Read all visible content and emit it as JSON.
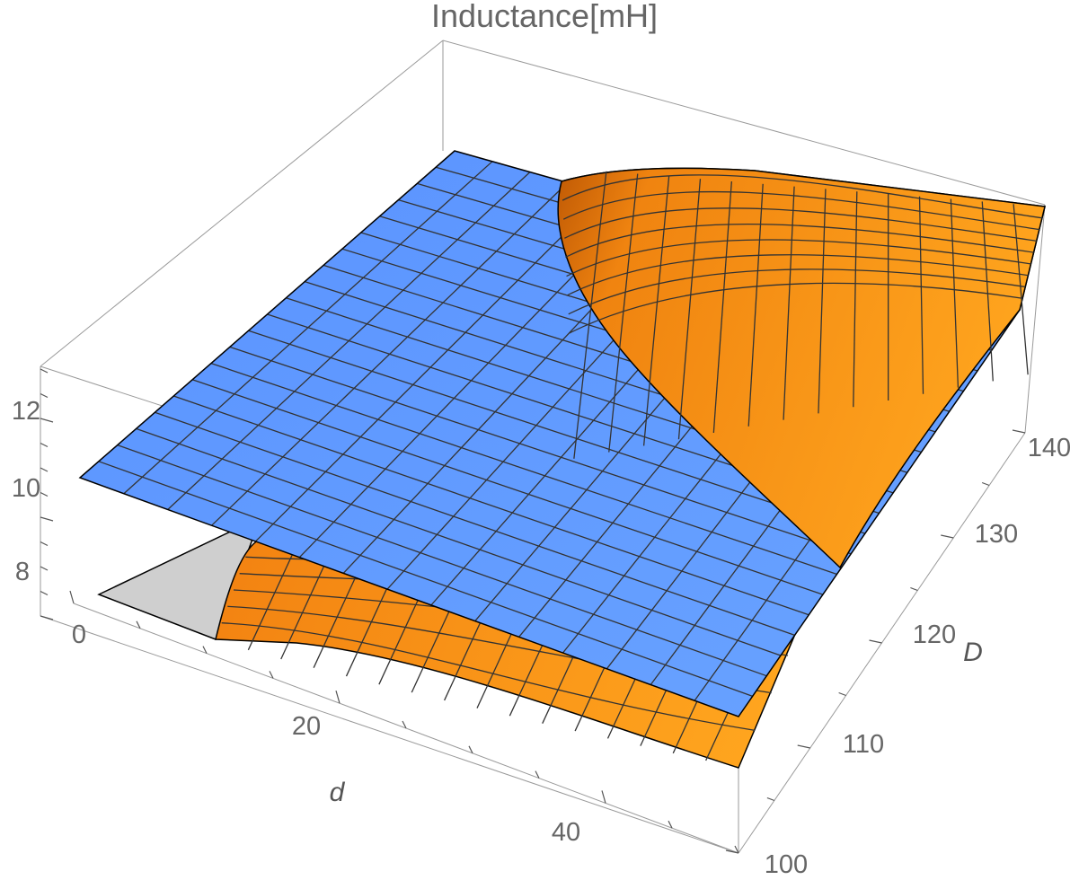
{
  "chart_data": {
    "type": "surface3d",
    "title": "Inductance[mH]",
    "xlabel": "d",
    "ylabel": "D",
    "zlabel": "",
    "x_ticks": [
      "0",
      "20",
      "40"
    ],
    "y_ticks": [
      "100",
      "110",
      "120",
      "130",
      "140"
    ],
    "z_ticks": [
      "8",
      "10",
      "12"
    ],
    "xlim": [
      0,
      50
    ],
    "ylim": [
      100,
      142
    ],
    "zlim": [
      7.2,
      13
    ],
    "series": [
      {
        "surface": "plane",
        "color": "#6aa1ff",
        "corner_values": {
          "d0_D100": 10.4,
          "d50_D100": 8.2,
          "d0_D142": 13.0,
          "d50_D142": 10.6
        }
      },
      {
        "surface": "curved",
        "color": "#ff9a1a",
        "edge_values": {
          "d12_D100": 7.1,
          "d50_D100": 5.4,
          "d50_D142": 12.8,
          "d22_D142": 12.1
        }
      }
    ]
  }
}
